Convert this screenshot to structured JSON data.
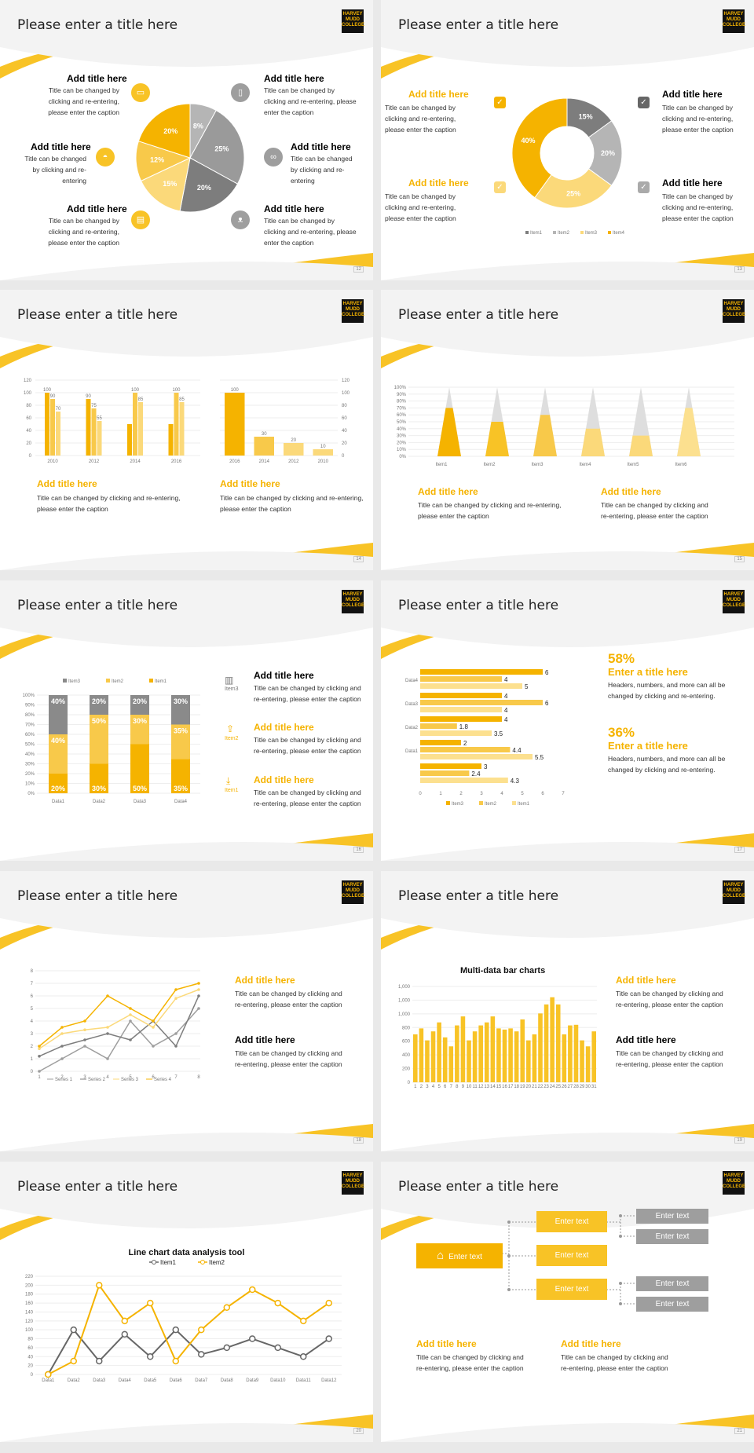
{
  "common": {
    "slide_title": "Please enter a title here",
    "logo": [
      "HARVEY",
      "MUDD",
      "COLLEGE"
    ],
    "add_title": "Add title here",
    "caption_short": "Title can be changed by clicking and re-entering",
    "caption_long": "Title can be changed by clicking and re-entering, please enter the caption",
    "caption_long_a": "Title can be changed by clicking and",
    "caption_long_b": "re-entering, please enter the caption",
    "accent": "#f5b300",
    "grey": "#9e9e9e"
  },
  "slide12": {
    "page": "12",
    "icons": [
      "monitor-icon",
      "phone-icon",
      "car-icon",
      "binoculars-icon",
      "document-icon",
      "bicycle-icon"
    ],
    "chart_data": {
      "type": "pie",
      "slices": [
        {
          "label": "8%",
          "value": 8
        },
        {
          "label": "25%",
          "value": 25
        },
        {
          "label": "20%",
          "value": 20
        },
        {
          "label": "15%",
          "value": 15
        },
        {
          "label": "12%",
          "value": 12
        },
        {
          "label": "20%",
          "value": 20
        }
      ]
    }
  },
  "slide13": {
    "page": "13",
    "chart_data": {
      "type": "pie",
      "donut": true,
      "slices": [
        {
          "name": "Item1",
          "value": 15,
          "label": "15%"
        },
        {
          "name": "Item2",
          "value": 20,
          "label": "20%"
        },
        {
          "name": "Item3",
          "value": 25,
          "label": "25%"
        },
        {
          "name": "Item4",
          "value": 40,
          "label": "40%"
        }
      ],
      "legend": [
        "Item1",
        "Item2",
        "Item3",
        "Item4"
      ]
    }
  },
  "slide14": {
    "page": "14",
    "add_title": "Add title here",
    "caption": [
      "Title can be changed by clicking and re-entering,",
      "please enter the caption"
    ],
    "chart_data": [
      {
        "type": "bar",
        "categories": [
          "2010",
          "2012",
          "2014",
          "2016"
        ],
        "series": [
          {
            "values": [
              100,
              90,
              50,
              50
            ]
          },
          {
            "values": [
              90,
              75,
              100,
              100
            ]
          },
          {
            "values": [
              70,
              55,
              85,
              85
            ]
          }
        ],
        "ylim": [
          0,
          120
        ],
        "yticks": [
          0,
          20,
          40,
          60,
          80,
          100,
          120
        ],
        "labels": [
          [
            "100",
            "90",
            "70"
          ],
          [
            "90",
            "75",
            "55"
          ],
          [
            "",
            "100",
            "85"
          ],
          [
            "",
            "100",
            "85"
          ]
        ]
      },
      {
        "type": "bar",
        "categories": [
          "2016",
          "2014",
          "2012",
          "2010"
        ],
        "values": [
          100,
          30,
          20,
          10
        ],
        "ylim": [
          0,
          120
        ],
        "yticks": [
          0,
          20,
          40,
          60,
          80,
          100,
          120
        ]
      }
    ]
  },
  "slide15": {
    "page": "15",
    "chart_data": {
      "type": "bar",
      "shape": "cone",
      "categories": [
        "Item1",
        "Item2",
        "Item3",
        "Item4",
        "Item5",
        "Item6"
      ],
      "values": [
        70,
        50,
        60,
        40,
        30,
        70
      ],
      "ylim": [
        0,
        100
      ],
      "yticks": [
        "0%",
        "10%",
        "20%",
        "30%",
        "40%",
        "50%",
        "60%",
        "70%",
        "80%",
        "90%",
        "100%"
      ]
    }
  },
  "slide16": {
    "page": "16",
    "chart_data": {
      "type": "bar",
      "stacked": true,
      "categories": [
        "Data1",
        "Data2",
        "Data3",
        "Data4"
      ],
      "series": [
        {
          "name": "Item1",
          "values": [
            20,
            30,
            50,
            35
          ]
        },
        {
          "name": "Item2",
          "values": [
            40,
            50,
            30,
            35
          ]
        },
        {
          "name": "Item3",
          "values": [
            40,
            20,
            20,
            30
          ]
        }
      ],
      "legend": [
        "Item3",
        "Item2",
        "Item1"
      ],
      "yticks": [
        "0%",
        "10%",
        "20%",
        "30%",
        "40%",
        "50%",
        "60%",
        "70%",
        "80%",
        "90%",
        "100%"
      ]
    },
    "side_items": [
      {
        "icon": "bar-chart-icon",
        "label": "Item3"
      },
      {
        "icon": "upload-icon",
        "label": "Item2"
      },
      {
        "icon": "download-icon",
        "label": "Item1"
      }
    ]
  },
  "slide17": {
    "page": "17",
    "chart_data": {
      "type": "bar",
      "orientation": "horizontal",
      "categories": [
        "Data4",
        "Data3",
        "Data2",
        "Data1",
        ""
      ],
      "series": [
        {
          "name": "Item3",
          "values": [
            6,
            4,
            4,
            2,
            3
          ]
        },
        {
          "name": "Item2",
          "values": [
            4,
            6,
            1.8,
            4.4,
            2.4
          ]
        },
        {
          "name": "Item1",
          "values": [
            5,
            4,
            3.5,
            5.5,
            4.3
          ]
        }
      ],
      "xlim": [
        0,
        7
      ],
      "xticks": [
        "0",
        "1",
        "2",
        "3",
        "4",
        "5",
        "6",
        "7"
      ],
      "legend": [
        "Item3",
        "Item2",
        "Item1"
      ]
    },
    "stats": [
      {
        "value": "58%",
        "title": "Enter a title here",
        "text": [
          "Headers, numbers, and more can all be",
          "changed by clicking and re-entering."
        ]
      },
      {
        "value": "36%",
        "title": "Enter a title here",
        "text": [
          "Headers, numbers, and more can all be",
          "changed by clicking and re-entering."
        ]
      }
    ]
  },
  "slide18": {
    "page": "18",
    "chart_data": {
      "type": "line",
      "x": [
        1,
        2,
        3,
        4,
        5,
        6,
        7,
        8
      ],
      "ylim": [
        0,
        8
      ],
      "yticks": [
        "0",
        "1",
        "2",
        "3",
        "4",
        "5",
        "6",
        "7",
        "8"
      ],
      "series": [
        {
          "name": "Series 1",
          "values": [
            0,
            1,
            2,
            1,
            4,
            2,
            3,
            5
          ]
        },
        {
          "name": "Series 2",
          "values": [
            1.2,
            2,
            2.5,
            3,
            2.5,
            4,
            2,
            6
          ]
        },
        {
          "name": "Series 3",
          "values": [
            1.8,
            3,
            3.3,
            3.5,
            4.5,
            3.5,
            5.8,
            6.5
          ]
        },
        {
          "name": "Series 4",
          "values": [
            2,
            3.5,
            4,
            6,
            5,
            4,
            6.5,
            7
          ]
        }
      ]
    }
  },
  "slide19": {
    "page": "19",
    "chart_data": {
      "type": "bar",
      "title": "Multi-data bar charts",
      "categories": [
        "1",
        "2",
        "3",
        "4",
        "5",
        "6",
        "7",
        "8",
        "9",
        "10",
        "11",
        "12",
        "13",
        "14",
        "15",
        "16",
        "17",
        "18",
        "19",
        "20",
        "21",
        "22",
        "23",
        "24",
        "25",
        "26",
        "27",
        "28",
        "29",
        "30",
        "31"
      ],
      "values": [
        800,
        900,
        700,
        850,
        1000,
        750,
        600,
        950,
        1100,
        700,
        850,
        950,
        1000,
        1100,
        900,
        880,
        900,
        850,
        1050,
        700,
        800,
        1150,
        1300,
        1420,
        1300,
        800,
        950,
        960,
        700,
        600,
        850
      ],
      "yticks": [
        "0",
        "200",
        "400",
        "600",
        "800",
        "1,000",
        "1,000",
        "1,000"
      ],
      "ylim": [
        0,
        1600
      ]
    }
  },
  "slide20": {
    "page": "20",
    "chart_data": {
      "type": "line",
      "title": "Line chart data analysis tool",
      "categories": [
        "Data1",
        "Data2",
        "Data3",
        "Data4",
        "Data5",
        "Data6",
        "Data7",
        "Data8",
        "Data9",
        "Data10",
        "Data11",
        "Data12"
      ],
      "series": [
        {
          "name": "Item1",
          "values": [
            0,
            100,
            30,
            90,
            40,
            100,
            45,
            60,
            80,
            60,
            40,
            80
          ]
        },
        {
          "name": "Item2",
          "values": [
            0,
            30,
            200,
            120,
            160,
            30,
            100,
            150,
            190,
            160,
            120,
            160
          ]
        }
      ],
      "ylim": [
        0,
        220
      ],
      "yticks": [
        "0",
        "20",
        "40",
        "60",
        "80",
        "100",
        "120",
        "140",
        "160",
        "180",
        "200",
        "220"
      ]
    }
  },
  "slide21": {
    "page": "21",
    "root": "Enter text",
    "mid": [
      "Enter text",
      "Enter text",
      "Enter text"
    ],
    "leaves": [
      "Enter text",
      "Enter text",
      "Enter text",
      "Enter text"
    ]
  }
}
